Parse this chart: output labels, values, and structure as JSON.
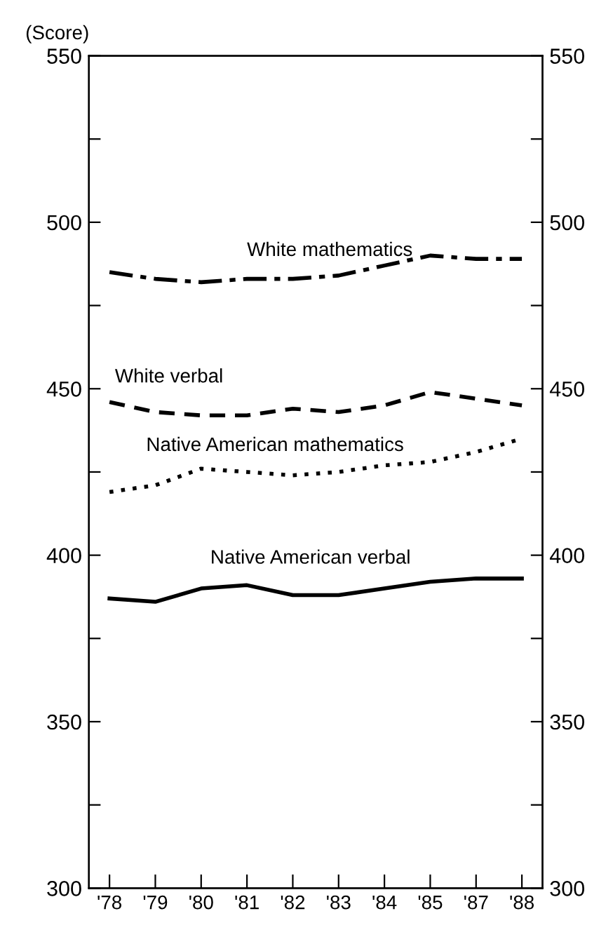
{
  "chart_data": {
    "type": "line",
    "ylabel": "(Score)",
    "categories": [
      "'78",
      "'79",
      "'80",
      "'81",
      "'82",
      "'83",
      "'84",
      "'85",
      "'87",
      "'88"
    ],
    "series": [
      {
        "name": "White mathematics",
        "color": "#000000",
        "line_style": "dashdot",
        "values": [
          485,
          483,
          482,
          483,
          483,
          484,
          487,
          490,
          489,
          489
        ]
      },
      {
        "name": "White verbal",
        "color": "#000000",
        "line_style": "dashed",
        "values": [
          446,
          443,
          442,
          442,
          444,
          443,
          445,
          449,
          447,
          445
        ]
      },
      {
        "name": "Native American mathematics",
        "color": "#000000",
        "line_style": "dotted",
        "values": [
          419,
          421,
          426,
          425,
          424,
          425,
          427,
          428,
          431,
          435
        ]
      },
      {
        "name": "Native American verbal",
        "color": "#000000",
        "line_style": "solid",
        "values": [
          387,
          386,
          390,
          391,
          388,
          388,
          390,
          392,
          393,
          393
        ]
      }
    ],
    "ylim": [
      300,
      550
    ],
    "yticks": [
      300,
      {
        "value": 325,
        "label": null
      },
      350,
      {
        "value": 375,
        "label": null
      },
      400,
      {
        "value": 425,
        "label": null
      },
      450,
      {
        "value": 475,
        "label": null
      },
      500,
      {
        "value": 525,
        "label": null
      },
      550
    ],
    "y2lim": [
      300,
      550
    ],
    "y2ticks": [
      300,
      {
        "value": 325,
        "label": null
      },
      350,
      {
        "value": 375,
        "label": null
      },
      400,
      {
        "value": 425,
        "label": null
      },
      450,
      {
        "value": 475,
        "label": null
      },
      500,
      {
        "value": 525,
        "label": null
      },
      550
    ],
    "grid": false,
    "legend": false,
    "marker": "none"
  }
}
